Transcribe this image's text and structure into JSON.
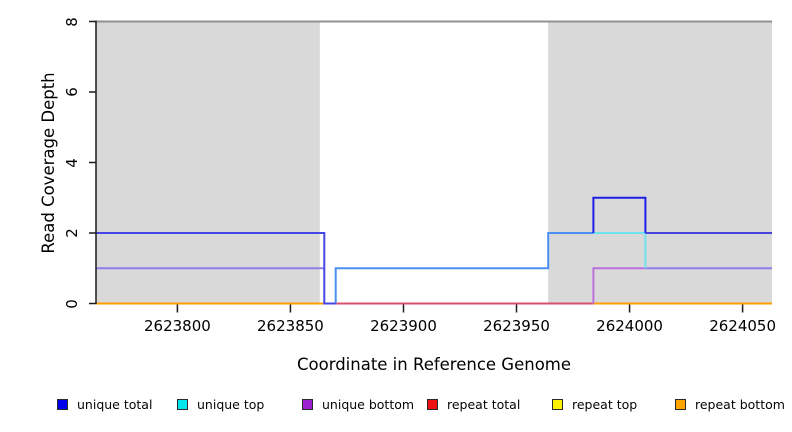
{
  "chart_data": {
    "type": "line",
    "subtype": "step-coverage",
    "title": "",
    "xlabel": "Coordinate in Reference Genome",
    "ylabel": "Read Coverage Depth",
    "xlim": [
      2623764,
      2624063
    ],
    "ylim": [
      0,
      8
    ],
    "x_ticks": [
      2623800,
      2623850,
      2623900,
      2623950,
      2624000,
      2624050
    ],
    "y_ticks": [
      0,
      2,
      4,
      6,
      8
    ],
    "grid": false,
    "legend_position": "bottom",
    "repeat_regions": [
      {
        "start": 2623764,
        "end": 2623863
      },
      {
        "start": 2623964,
        "end": 2624063
      }
    ],
    "series": [
      {
        "name": "unique total",
        "color": "#0000ee",
        "steps": [
          [
            2623764,
            2
          ],
          [
            2623865,
            0
          ],
          [
            2623870,
            1
          ],
          [
            2623964,
            2
          ],
          [
            2623984,
            3
          ],
          [
            2624007,
            2
          ],
          [
            2624063,
            2
          ]
        ]
      },
      {
        "name": "unique top",
        "color": "#00e5ee",
        "steps": [
          [
            2623764,
            1
          ],
          [
            2623865,
            0
          ],
          [
            2623870,
            1
          ],
          [
            2623964,
            2
          ],
          [
            2624007,
            1
          ],
          [
            2624063,
            1
          ]
        ]
      },
      {
        "name": "unique bottom",
        "color": "#9b21d0",
        "steps": [
          [
            2623764,
            1
          ],
          [
            2623865,
            0
          ],
          [
            2623984,
            1
          ],
          [
            2624063,
            1
          ]
        ]
      },
      {
        "name": "repeat total",
        "color": "#ee1111",
        "steps": [
          [
            2623764,
            0
          ],
          [
            2624063,
            0
          ]
        ]
      },
      {
        "name": "repeat top",
        "color": "#fff200",
        "steps": [
          [
            2623764,
            0
          ],
          [
            2624063,
            0
          ]
        ]
      },
      {
        "name": "repeat bottom",
        "color": "#ffa400",
        "steps": [
          [
            2623764,
            0
          ],
          [
            2624063,
            0
          ]
        ]
      }
    ],
    "rendered_segments": [
      {
        "name": "repeat-bottom-left-line",
        "color": "#ff9e00",
        "points": [
          [
            2623764,
            0
          ],
          [
            2623866,
            0
          ]
        ]
      },
      {
        "name": "repeat-total-middle-line",
        "color": "#d94f6e",
        "points": [
          [
            2623866,
            0
          ],
          [
            2623984,
            0
          ]
        ]
      },
      {
        "name": "repeat-bottom-right-line",
        "color": "#ff9e00",
        "points": [
          [
            2623984,
            0
          ],
          [
            2624063,
            0
          ]
        ]
      },
      {
        "name": "unique-top-bottom-blend-left",
        "color": "#8d80ea",
        "points": [
          [
            2623764,
            1
          ],
          [
            2623865,
            1
          ]
        ]
      },
      {
        "name": "unique-bottom-step-line",
        "color": "#bb70dd",
        "points": [
          [
            2623984,
            0
          ],
          [
            2623984,
            1
          ],
          [
            2624007,
            1
          ]
        ]
      },
      {
        "name": "unique-top-bottom-blend-right",
        "color": "#8d80ea",
        "points": [
          [
            2624007,
            1
          ],
          [
            2624063,
            1
          ]
        ]
      },
      {
        "name": "unique-top-exposed-line",
        "color": "#6fe3ec",
        "points": [
          [
            2623984,
            2
          ],
          [
            2624007,
            2
          ],
          [
            2624007,
            1
          ]
        ]
      },
      {
        "name": "unique-total-top-blend-line",
        "color": "#4a8ff2",
        "points": [
          [
            2623870,
            0
          ],
          [
            2623870,
            1
          ],
          [
            2623964,
            1
          ],
          [
            2623964,
            2
          ],
          [
            2623984,
            2
          ]
        ]
      },
      {
        "name": "unique-total-left-line",
        "color": "#4646e6",
        "points": [
          [
            2623764,
            2
          ],
          [
            2623865,
            2
          ],
          [
            2623865,
            0
          ],
          [
            2623870,
            0
          ]
        ]
      },
      {
        "name": "unique-total-bump-line",
        "color": "#1f1fe8",
        "points": [
          [
            2623984,
            2
          ],
          [
            2623984,
            3
          ],
          [
            2624007,
            3
          ],
          [
            2624007,
            2
          ]
        ]
      },
      {
        "name": "unique-total-right-line",
        "color": "#4a42dd",
        "points": [
          [
            2624007,
            2
          ],
          [
            2624063,
            2
          ]
        ]
      }
    ]
  },
  "legend": {
    "items": [
      {
        "label": "unique total",
        "color": "#0000ee"
      },
      {
        "label": "unique top",
        "color": "#00e5ee"
      },
      {
        "label": "unique bottom",
        "color": "#9b21d0"
      },
      {
        "label": "repeat total",
        "color": "#ee1111"
      },
      {
        "label": "repeat top",
        "color": "#fff200"
      },
      {
        "label": "repeat bottom",
        "color": "#ffa400"
      }
    ]
  },
  "colors": {
    "repeat_region_fill": "#d9d9d9",
    "plot_border": "#919191",
    "axis": "#1c1c1c",
    "background": "#ffffff"
  }
}
